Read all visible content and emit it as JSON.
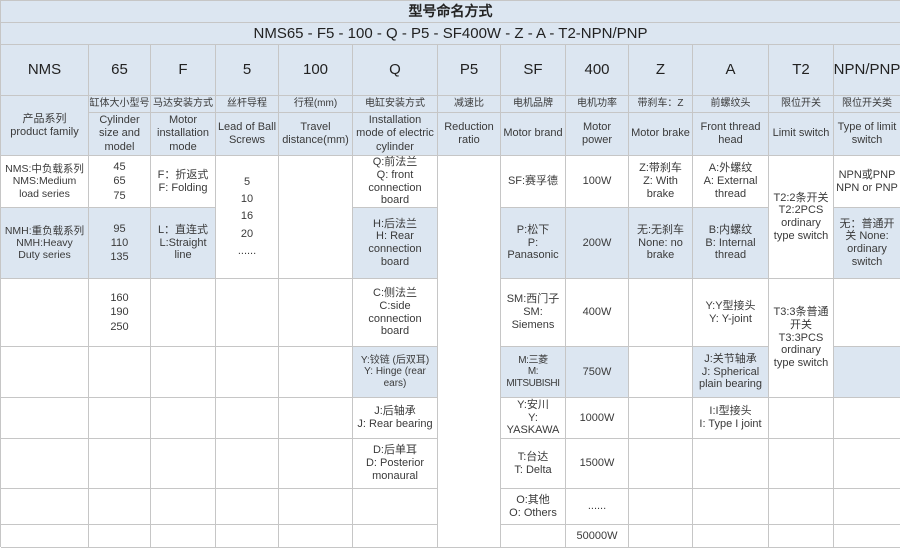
{
  "title": "型号命名方式",
  "model_code": "NMS65 - F5 - 100 - Q - P5 - SF400W - Z - A - T2-NPN/PNP",
  "colors": {
    "header_bg": "#dce6f1",
    "alt_cell_bg": "#dce6f1",
    "border": "#c6c6c6",
    "text": "#3a3a3a"
  },
  "columns": [
    {
      "code": "NMS",
      "cn": "产品系列",
      "en": "product family"
    },
    {
      "code": "65",
      "cn": "缸体大小型号",
      "en": "Cylinder size and model"
    },
    {
      "code": "F",
      "cn": "马达安装方式",
      "en": "Motor installation mode"
    },
    {
      "code": "5",
      "cn": "丝杆导程",
      "en": "Lead of Ball Screws"
    },
    {
      "code": "100",
      "cn": "行程(mm)",
      "en": "Travel distance(mm)"
    },
    {
      "code": "Q",
      "cn": "电缸安装方式",
      "en": "Installation mode of electric cylinder"
    },
    {
      "code": "P5",
      "cn": "减速比",
      "en": "Reduction ratio"
    },
    {
      "code": "SF",
      "cn": "电机品牌",
      "en": "Motor brand"
    },
    {
      "code": "400",
      "cn": "电机功率",
      "en": "Motor power"
    },
    {
      "code": "Z",
      "cn": "带刹车：Z",
      "en": "Motor brake"
    },
    {
      "code": "A",
      "cn": "前螺纹头",
      "en": "Front thread head"
    },
    {
      "code": "T2",
      "cn": "限位开关",
      "en": "Limit switch"
    },
    {
      "code": "NPN/PNP",
      "cn": "限位开关类",
      "en": "Type of limit switch"
    }
  ],
  "body": {
    "family": [
      "NMS:中负载系列\nNMS:Medium\nload series",
      "NMH:重负载系列\nNMH:Heavy\nDuty series"
    ],
    "size": [
      "45\n65\n75",
      "95\n110\n135",
      "160\n190\n250"
    ],
    "motor_mode": [
      "F：折返式\nF: Folding",
      "L：直连式\nL:Straight\nline"
    ],
    "lead": "5\n10\n16\n20\n......",
    "install": [
      "Q:前法兰\nQ: front\nconnection\nboard",
      "H:后法兰\nH: Rear\nconnection\nboard",
      "C:侧法兰\nC:side\nconnection\nboard",
      "Y:铰链 (后双耳)\nY: Hinge (rear\nears)",
      "J:后轴承\nJ: Rear bearing",
      "D:后单耳\nD: Posterior\nmonaural"
    ],
    "brand": [
      "SF:赛孚德",
      "P:松下\nP:\nPanasonic",
      "SM:西门子\nSM:\nSiemens",
      "M:三菱\nM:\nMITSUBISHI",
      "Y:安川\nY:\nYASKAWA",
      "T:台达\nT: Delta",
      "O:其他\nO: Others"
    ],
    "power": [
      "100W",
      "200W",
      "400W",
      "750W",
      "1000W",
      "1500W",
      "......",
      "50000W"
    ],
    "brake": [
      "Z:带刹车\nZ: With\nbrake",
      "无:无刹车\nNone: no\nbrake"
    ],
    "thread": [
      "A:外螺纹\nA: External\nthread",
      "B:内螺纹\nB: Internal\nthread",
      "Y:Y型接头\nY: Y-joint",
      "J:关节轴承\nJ: Spherical\nplain bearing",
      "I:I型接头\nI: Type I joint"
    ],
    "limit": [
      "T2:2条开关\nT2:2PCS\nordinary\ntype switch",
      "T3:3条普通开关\nT3:3PCS\nordinary\ntype switch"
    ],
    "switch_type": [
      "NPN或PNP\nNPN or PNP",
      "无：普通开关\nNone:\nordinary\nswitch"
    ]
  }
}
